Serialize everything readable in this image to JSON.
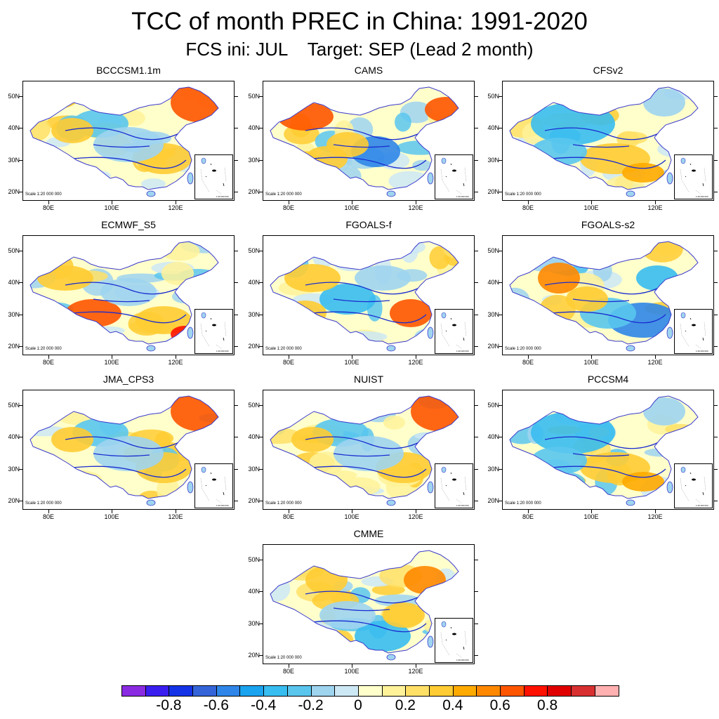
{
  "title": "TCC of month PREC in China: 1991-2020",
  "subtitle": "FCS ini: JUL    Target: SEP (Lead 2 month)",
  "scale_text": "Scale 1:20 000 000",
  "inset_text": "1:40 000 000",
  "lat_labels": [
    "50N",
    "40N",
    "30N",
    "20N"
  ],
  "lon_labels": [
    "80E",
    "100E",
    "120E"
  ],
  "models": [
    {
      "name": "BCCCSM1.1m",
      "pattern": "northeast-positive"
    },
    {
      "name": "CAMS",
      "pattern": "west-positive"
    },
    {
      "name": "CFSv2",
      "pattern": "mostly-negative"
    },
    {
      "name": "ECMWF_S5",
      "pattern": "tibet-positive"
    },
    {
      "name": "FGOALS-f",
      "pattern": "east-positive"
    },
    {
      "name": "FGOALS-s2",
      "pattern": "south-negative"
    },
    {
      "name": "JMA_CPS3",
      "pattern": "northeast-positive"
    },
    {
      "name": "NUIST",
      "pattern": "northeast-positive"
    },
    {
      "name": "PCCSM4",
      "pattern": "mostly-negative"
    },
    {
      "name": "CMME",
      "pattern": "mixed"
    }
  ],
  "colorbar": {
    "colors": [
      "#8a2be2",
      "#3a1ef0",
      "#1433e6",
      "#3464d8",
      "#2f86e8",
      "#1aa3ee",
      "#38bdf0",
      "#5ac6ee",
      "#9fd4ef",
      "#cde8f5",
      "#ffffcc",
      "#fff299",
      "#ffe066",
      "#ffcc33",
      "#ffaa00",
      "#ff8800",
      "#ff5500",
      "#ff1100",
      "#e00000",
      "#d83030",
      "#ffb0b0"
    ],
    "labels": [
      "-0.8",
      "-0.6",
      "-0.4",
      "-0.2",
      "0",
      "0.2",
      "0.4",
      "0.6",
      "0.8"
    ]
  }
}
